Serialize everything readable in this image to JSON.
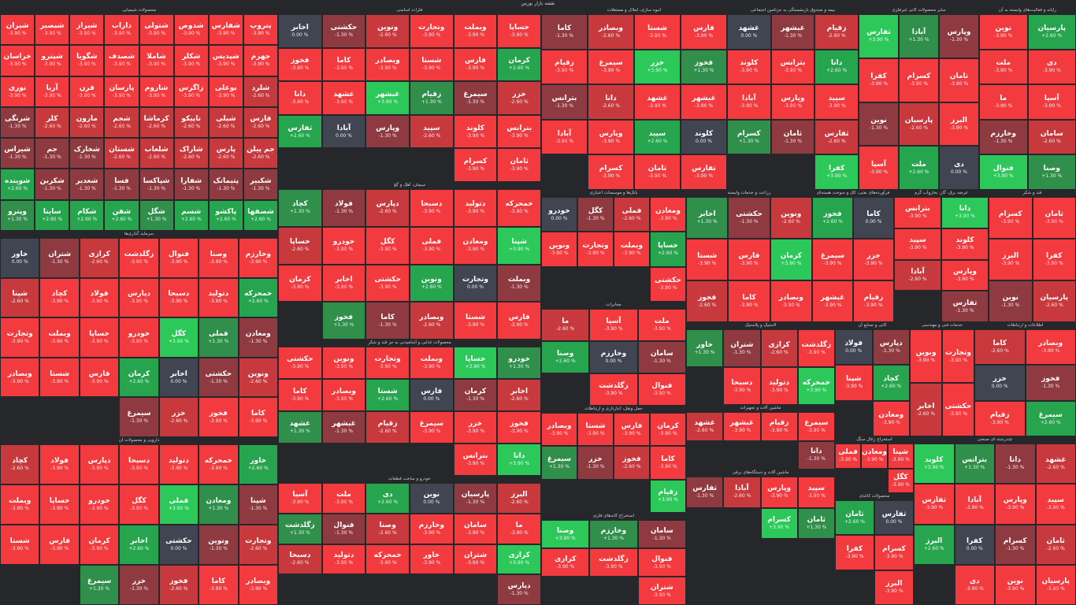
{
  "title": "نقشه بازار بورس",
  "palette": {
    "neg3": "#f23a3f",
    "neg2": "#c7393d",
    "neg1": "#8e3a40",
    "flat": "#414552",
    "pos1": "#2f8f4b",
    "pos2": "#27a54e",
    "pos3": "#2dc85a",
    "bg": "#26272b"
  },
  "chart_data": {
    "type": "heatmap",
    "sectors": [
      {
        "name": "محصولات شیمیایی",
        "tiles": [
          {
            "s": "پتروپ",
            "c": -3
          },
          {
            "s": "شفارس",
            "c": -3
          },
          {
            "s": "شدوص",
            "c": -3
          },
          {
            "s": "شتولی",
            "c": -3
          },
          {
            "s": "داراب",
            "c": -3
          },
          {
            "s": "شیراز",
            "c": -3
          },
          {
            "s": "شبصیر",
            "c": -3
          },
          {
            "s": "شیران",
            "c": -3
          },
          {
            "s": "جهرم",
            "c": -3
          },
          {
            "s": "شپدیس",
            "c": -3
          },
          {
            "s": "شکلر",
            "c": -3
          },
          {
            "s": "شاملا",
            "c": -3
          },
          {
            "s": "شصدف",
            "c": -3
          },
          {
            "s": "شگویا",
            "c": -3
          },
          {
            "s": "شپترو",
            "c": -3
          },
          {
            "s": "خراسان",
            "c": -3
          },
          {
            "s": "شلرد",
            "c": -2
          },
          {
            "s": "بوعلی",
            "c": -3
          },
          {
            "s": "زاگرس",
            "c": -3
          },
          {
            "s": "شاروم",
            "c": -3
          },
          {
            "s": "پارسان",
            "c": -3
          },
          {
            "s": "قرن",
            "c": -3
          },
          {
            "s": "آریا",
            "c": -3
          },
          {
            "s": "نوری",
            "c": -3
          },
          {
            "s": "فارس",
            "c": -2
          },
          {
            "s": "شیلی",
            "c": -2
          },
          {
            "s": "تاپیکو",
            "c": -2
          },
          {
            "s": "کرماشا",
            "c": -2
          },
          {
            "s": "شجم",
            "c": -2
          },
          {
            "s": "مارون",
            "c": -2
          },
          {
            "s": "کلر",
            "c": -2
          },
          {
            "s": "شرنگی",
            "c": -1
          },
          {
            "s": "جم پیلن",
            "c": -2
          },
          {
            "s": "پارس",
            "c": -2
          },
          {
            "s": "شاراک",
            "c": -2
          },
          {
            "s": "شلعاب",
            "c": -2
          },
          {
            "s": "شستان",
            "c": -2
          },
          {
            "s": "شخارک",
            "c": -1
          },
          {
            "s": "جم",
            "c": -1
          },
          {
            "s": "شیراس",
            "c": -1
          },
          {
            "s": "شکبیر",
            "c": -1
          },
          {
            "s": "پتیمانک",
            "c": -1
          },
          {
            "s": "شفارا",
            "c": -1
          },
          {
            "s": "شپاکسا",
            "c": -1
          },
          {
            "s": "فسا",
            "c": -1
          },
          {
            "s": "شغدیر",
            "c": -1
          },
          {
            "s": "شکربن",
            "c": -1
          },
          {
            "s": "شوینده",
            "c": 2
          },
          {
            "s": "شصفها",
            "c": 2
          },
          {
            "s": "پاکشو",
            "c": 2
          },
          {
            "s": "شسم",
            "c": 2
          },
          {
            "s": "شگل",
            "c": 1
          },
          {
            "s": "شفن",
            "c": 2
          },
          {
            "s": "شکام",
            "c": 2
          },
          {
            "s": "ساینا",
            "c": 2
          },
          {
            "s": "وپترو",
            "c": 1
          }
        ]
      }
    ]
  },
  "sectors": [
    {
      "name": "محصولات شیمیایی"
    },
    {
      "name": "فلزات اساسی"
    },
    {
      "name": "انبوه سازی، املاک و مستغلات"
    },
    {
      "name": "بیمه و صندوق بازنشستگی به جزتامین اجتماعی"
    },
    {
      "name": "سایر محصولات کانی غیرفلزی"
    },
    {
      "name": "رایانه و فعالیت‌های وابسته به آن"
    },
    {
      "name": "سرمایه گذاری‌ها"
    },
    {
      "name": "سیمان، آهک و گچ"
    },
    {
      "name": "بانک‌ها و موسسات اعتباری"
    },
    {
      "name": "زراعت و خدمات وابسته"
    },
    {
      "name": "فرآورده‌های نفتی، کک و سوخت هسته‌ای"
    },
    {
      "name": "عرضه برق، گاز، بخاروآب گرم"
    },
    {
      "name": "قند و شکر"
    },
    {
      "name": "مخابرات"
    },
    {
      "name": "لاستیک و پلاستیک"
    },
    {
      "name": "کانی و صنایع آن"
    },
    {
      "name": "محصولات غذایی و آشامیدنی به جز قند و شکر"
    },
    {
      "name": "حمل ونقل، انبارداری و ارتباطات"
    },
    {
      "name": "ماشین آلات و تجهیزات"
    },
    {
      "name": "ماشین آلات و دستگاه‌های برقی"
    },
    {
      "name": "خودرو و ساخت قطعات"
    },
    {
      "name": "استخراج کانه‌های فلزی"
    },
    {
      "name": "دارویی و محصولات آن"
    },
    {
      "name": "استخراج زغال سنگ"
    },
    {
      "name": "خدمات فنی و مهندسی"
    },
    {
      "name": "اطلاعات و ارتباطات"
    },
    {
      "name": "چندرشته ای صنعتی"
    },
    {
      "name": "محصولات کاغذی"
    }
  ]
}
